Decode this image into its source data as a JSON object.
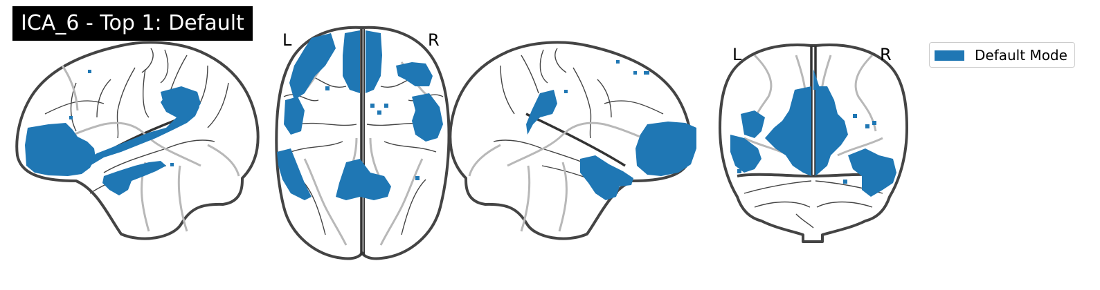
{
  "title": "ICA_6 - Top 1: Default",
  "views": {
    "axial": {
      "left_label": "L",
      "right_label": "R"
    },
    "coronal": {
      "left_label": "L",
      "right_label": "R"
    }
  },
  "legend": {
    "label": "Default Mode",
    "color": "#1f77b4"
  },
  "colors": {
    "overlay": "#1f77b4",
    "outline": "#444444",
    "title_bg": "#000000"
  }
}
